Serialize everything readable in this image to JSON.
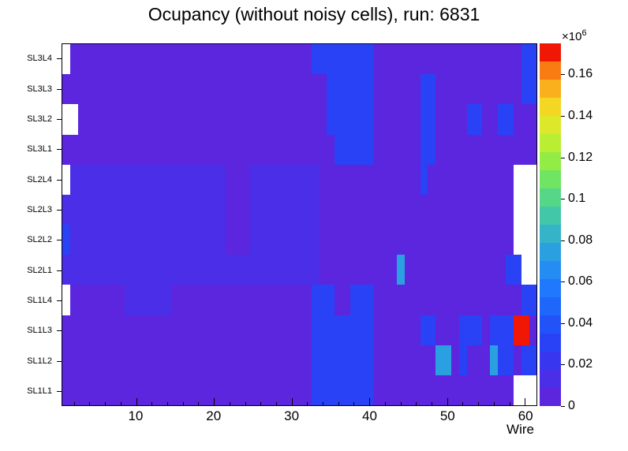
{
  "title": "Ocupancy (without noisy cells), run: 6831",
  "run": "6831",
  "chart_data": {
    "type": "heatmap",
    "title": "Ocupancy (without noisy cells), run: 6831",
    "xlabel": "Wire",
    "x_ticks": [
      10,
      20,
      30,
      40,
      50,
      60
    ],
    "x_minor_tick_step": 2,
    "n_wires": 61,
    "x_range": [
      0.5,
      61.5
    ],
    "y_categories_top_to_bottom": [
      "SL3L4",
      "SL3L3",
      "SL3L2",
      "SL3L1",
      "SL2L4",
      "SL2L3",
      "SL2L2",
      "SL2L1",
      "SL1L4",
      "SL1L3",
      "SL1L2",
      "SL1L1"
    ],
    "cell_value_key": {
      ".": 5000,
      "p": 12000,
      "b": 30000,
      "c": 75000,
      "r": 168000,
      "w": null
    },
    "empty_color": "#ffffff",
    "rows": [
      {
        "label": "SL3L4",
        "cells": "w...............................bbbbbbbb...................bb"
      },
      {
        "label": "SL3L3",
        "cells": "..................................bbbbbb......bb...........bb"
      },
      {
        "label": "SL3L2",
        "cells": "ww................................bbbbbb......bb....bb..bb..."
      },
      {
        "label": "SL3L1",
        "cells": "...................................bbbbb......bb............."
      },
      {
        "label": "SL2L4",
        "cells": "wpppppppppppppppppppp...ppppppppp.............b...........www"
      },
      {
        "label": "SL2L3",
        "cells": "ppppppppppppppppppppp...ppppppppp.........................www"
      },
      {
        "label": "SL2L2",
        "cells": "bpppppppppppppppppppp...ppppppppp.........................www"
      },
      {
        "label": "SL2L1",
        "cells": "ppppppppppppppppppppppppppppppppp..........c.............bbww"
      },
      {
        "label": "SL1L4",
        "cells": "w.......pppppp..................bbb..bbb...................bb"
      },
      {
        "label": "SL1L3",
        "cells": "................................bbbbbbbb......bb...bbb.bbbrr."
      },
      {
        "label": "SL1L2",
        "cells": "................................bbbbbbbb........cc.b...cbb.bb"
      },
      {
        "label": "SL1L1",
        "cells": "................................bbbbbbbb..................www"
      }
    ],
    "colorbar": {
      "min": 0,
      "max": 175000,
      "scale_mantissa": "×10",
      "scale_exponent": "6",
      "tick_values": [
        0,
        20000,
        40000,
        60000,
        80000,
        100000,
        120000,
        140000,
        160000
      ],
      "tick_labels": [
        "0",
        "0.02",
        "0.04",
        "0.06",
        "0.08",
        "0.1",
        "0.12",
        "0.14",
        "0.16"
      ],
      "palette": [
        "#5b26dd",
        "#4a2ee8",
        "#3936f0",
        "#2a42f6",
        "#2253f9",
        "#1f66fb",
        "#2079fc",
        "#258cf3",
        "#2ba0e0",
        "#35b4c8",
        "#42c7a9",
        "#55d787",
        "#70e463",
        "#93ec46",
        "#b9ee33",
        "#dce829",
        "#f4d723",
        "#f9b01c",
        "#f97c12",
        "#f01705"
      ]
    }
  }
}
